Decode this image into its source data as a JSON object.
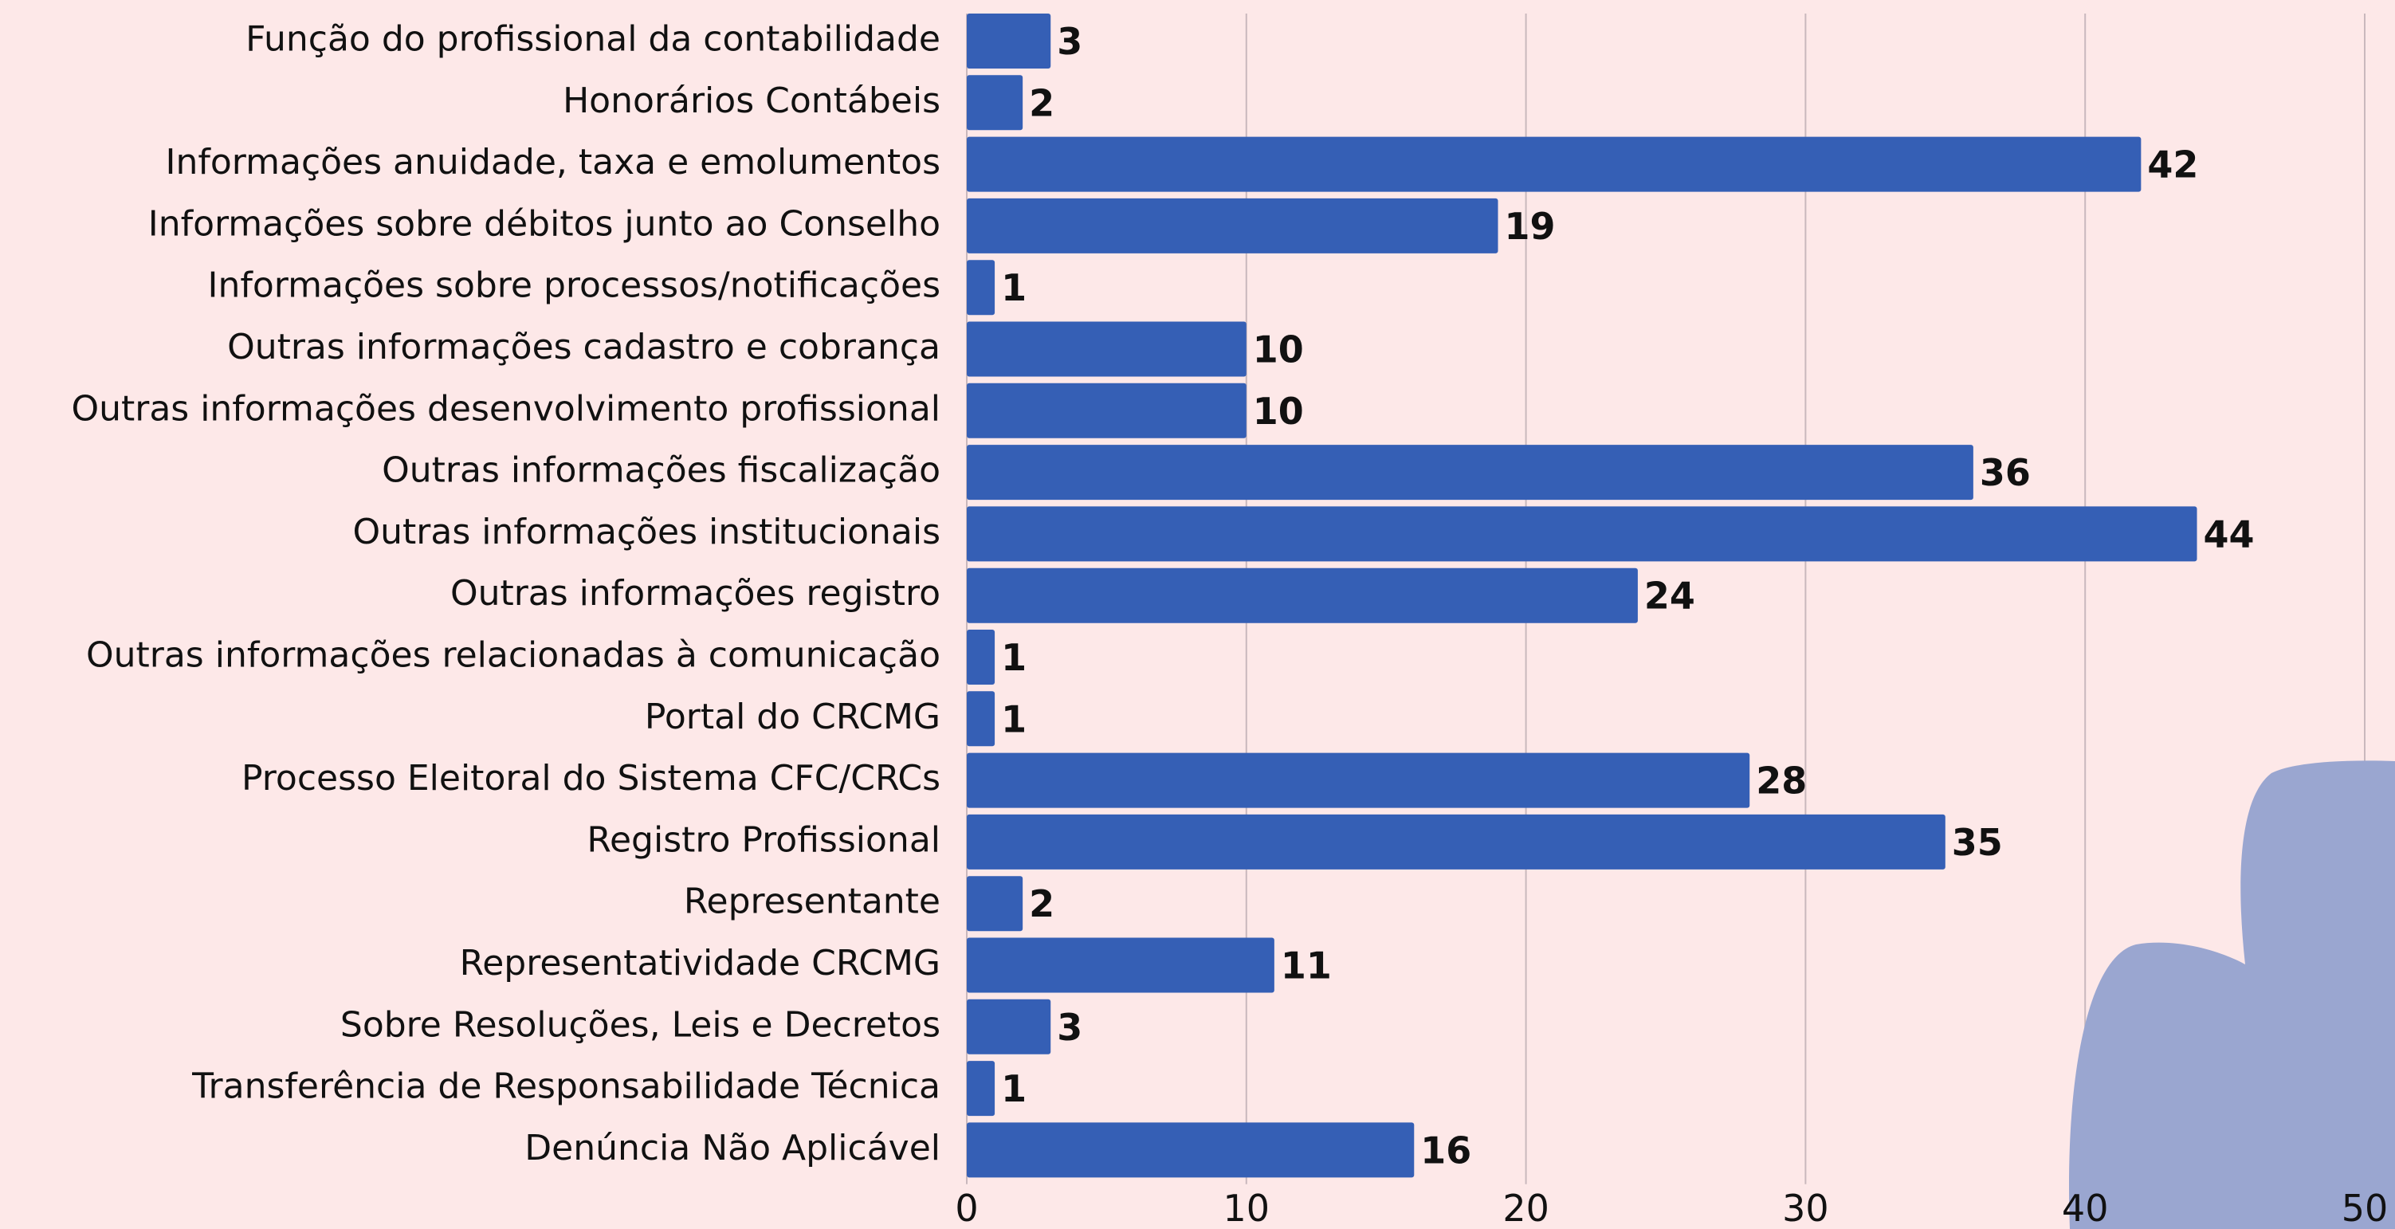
{
  "chart_data": {
    "type": "barh",
    "categories": [
      "Função do profissional da contabilidade",
      "Honorários Contábeis",
      "Informações anuidade, taxa e emolumentos",
      "Informações sobre débitos junto ao Conselho",
      "Informações sobre processos/notificações",
      "Outras informações cadastro e cobrança",
      "Outras informações desenvolvimento profissional",
      "Outras informações fiscalização",
      "Outras informações institucionais",
      "Outras informações registro",
      "Outras informações relacionadas à comunicação",
      "Portal do CRCMG",
      "Processo Eleitoral do Sistema CFC/CRCs",
      "Registro Profissional",
      "Representante",
      "Representatividade CRCMG",
      "Sobre Resoluções, Leis e Decretos",
      "Transferência de Responsabilidade Técnica",
      "Denúncia Não Aplicável"
    ],
    "values": [
      3,
      2,
      42,
      19,
      1,
      10,
      10,
      36,
      44,
      24,
      1,
      1,
      28,
      35,
      2,
      11,
      3,
      1,
      16
    ],
    "color": "#355fb5",
    "xlim": [
      0,
      50
    ],
    "xticks": [
      0,
      10,
      20,
      30,
      40,
      50
    ],
    "grid": true
  }
}
